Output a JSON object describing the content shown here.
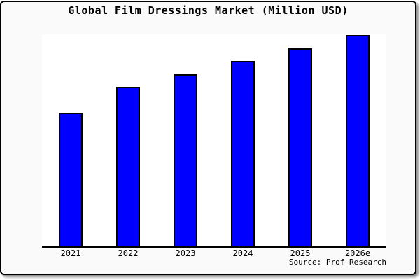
{
  "window": {
    "card_background": "#fafafa",
    "plot_background": "#ffffff",
    "frame_color": "#000000"
  },
  "chart_data": {
    "type": "bar",
    "title": "Global Film Dressings Market (Million USD)",
    "categories": [
      "2021",
      "2022",
      "2023",
      "2024",
      "2025",
      "2026e"
    ],
    "values": [
      63.2,
      75.5,
      81.5,
      87.7,
      93.7,
      100
    ],
    "values_note": "relative scale estimated from bar heights; no y-axis labels shown, tallest bar (2026e) = 100",
    "xlabel": "",
    "ylabel": "",
    "grid": false,
    "legend": false,
    "y_axis_visible": false,
    "bar_fill": "#0000ff",
    "bar_border": "#000000",
    "axis_color": "#000000",
    "source": "Source: Prof Research"
  }
}
